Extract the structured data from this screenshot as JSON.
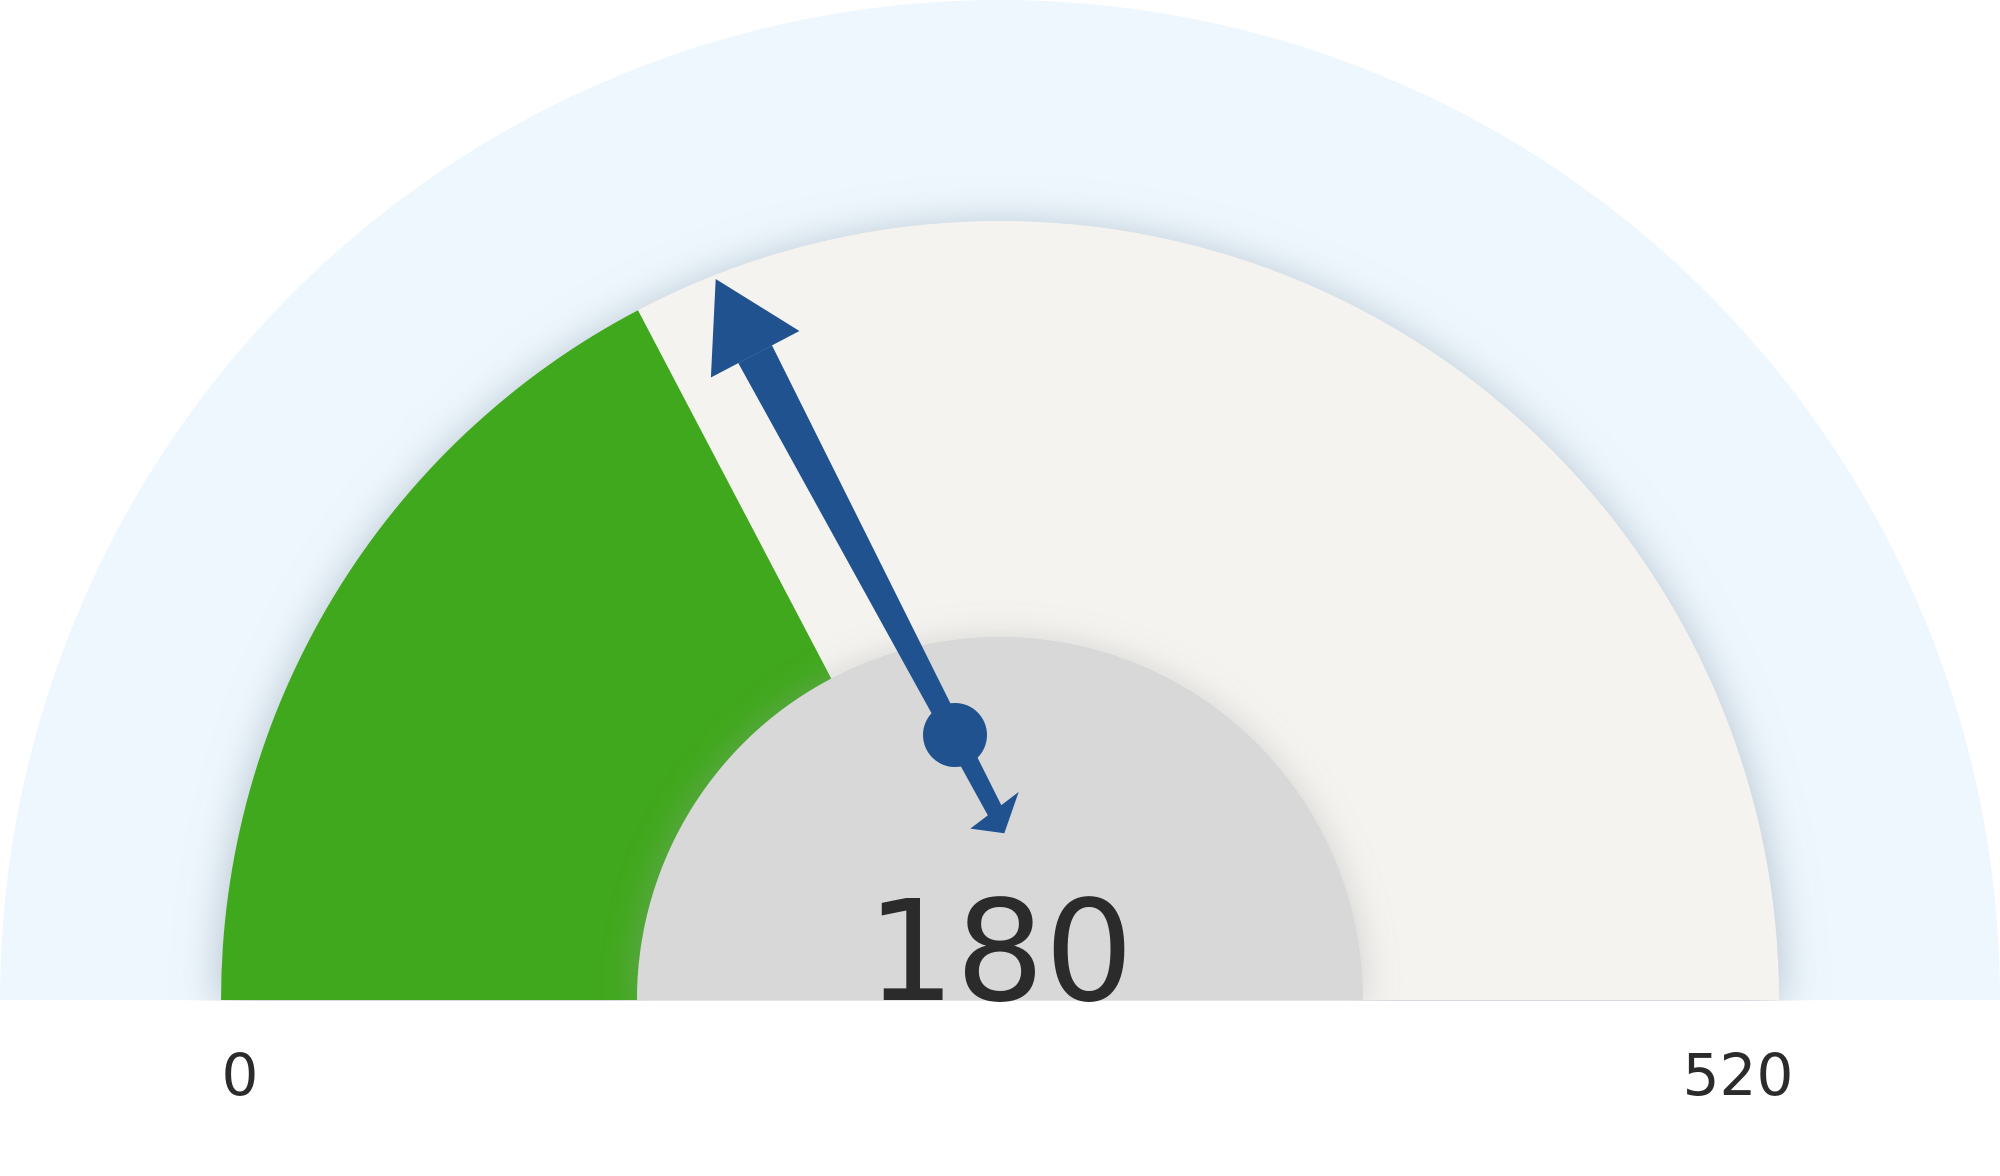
{
  "chart_data": {
    "type": "gauge",
    "value": 180,
    "min": 0,
    "max": 520,
    "value_label": "180",
    "min_label": "0",
    "max_label": "520",
    "colors": {
      "outer_band": "#eef7fd",
      "fill": "#41a81f",
      "track": "#f5f3ef",
      "inner": "#d8d8d8",
      "needle": "#1f528f",
      "text": "#2b2b2b"
    }
  }
}
